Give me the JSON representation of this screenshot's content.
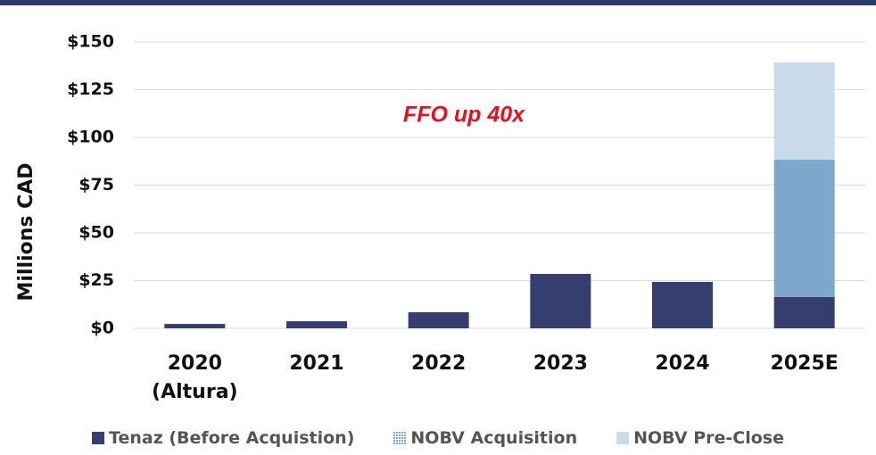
{
  "chart_data": {
    "type": "bar",
    "stacked": true,
    "y_label": "Millions CAD",
    "annotation": "FFO up 40x",
    "categories": [
      "2020 (Altura)",
      "2021",
      "2022",
      "2023",
      "2024",
      "2025E"
    ],
    "series": [
      {
        "name": "Tenaz (Before Acquistion)",
        "color": "#343f70",
        "values": [
          2.3,
          3.7,
          8.4,
          28.5,
          24.3,
          16.4
        ]
      },
      {
        "name": "NOBV Acquisition",
        "color": "#7ea7cc",
        "values": [
          null,
          null,
          null,
          null,
          null,
          71.9
        ]
      },
      {
        "name": "NOBV Pre-Close",
        "color": "#c9dbe8",
        "values": [
          null,
          null,
          null,
          null,
          null,
          51
        ]
      }
    ],
    "ylim": [
      0,
      150
    ],
    "yticks": [
      {
        "value": 0,
        "label": "$0"
      },
      {
        "value": 25,
        "label": "$25"
      },
      {
        "value": 50,
        "label": "$50"
      },
      {
        "value": 75,
        "label": "$75"
      },
      {
        "value": 100,
        "label": "$100"
      },
      {
        "value": 125,
        "label": "$125"
      },
      {
        "value": 150,
        "label": "$150"
      }
    ],
    "grid": true,
    "legend": "bottom"
  }
}
